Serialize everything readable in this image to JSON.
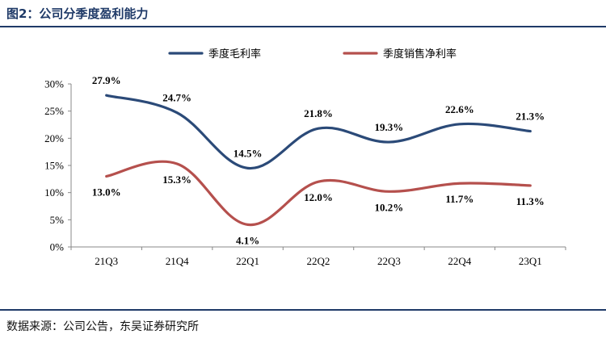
{
  "figure": {
    "title": "图2：公司分季度盈利能力",
    "source": "数据来源：公司公告，东吴证券研究所"
  },
  "chart_data": {
    "type": "line",
    "categories": [
      "21Q3",
      "21Q4",
      "22Q1",
      "22Q2",
      "22Q3",
      "22Q4",
      "23Q1"
    ],
    "series": [
      {
        "name": "季度毛利率",
        "values": [
          27.9,
          24.7,
          14.5,
          21.8,
          19.3,
          22.6,
          21.3
        ],
        "color": "#2b4a78",
        "labels": [
          "27.9%",
          "24.7%",
          "14.5%",
          "21.8%",
          "19.3%",
          "22.6%",
          "21.3%"
        ]
      },
      {
        "name": "季度销售净利率",
        "values": [
          13.0,
          15.3,
          4.1,
          12.0,
          10.2,
          11.7,
          11.3
        ],
        "color": "#b5504d",
        "labels": [
          "13.0%",
          "15.3%",
          "4.1%",
          "12.0%",
          "10.2%",
          "11.7%",
          "11.3%"
        ]
      }
    ],
    "ylim": [
      0,
      30
    ],
    "yticks": [
      "0%",
      "5%",
      "10%",
      "15%",
      "20%",
      "25%",
      "30%"
    ],
    "ytick_values": [
      0,
      5,
      10,
      15,
      20,
      25,
      30
    ],
    "grid": false,
    "legend_position": "top-center",
    "smooth": true
  }
}
